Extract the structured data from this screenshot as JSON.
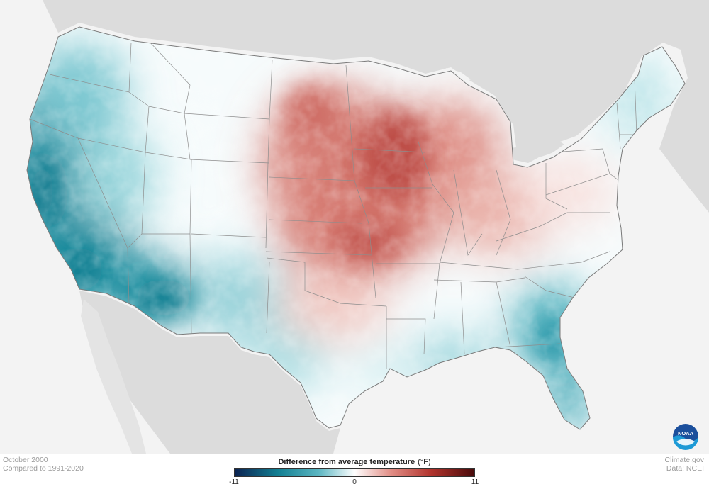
{
  "map": {
    "period": "October 2000",
    "baseline": "Compared to 1991-2020",
    "credit": "Climate.gov",
    "source": "Data: NCEI",
    "logo_text": "NOAA",
    "anomaly_unit": "°F",
    "legend": {
      "title": "Difference from average temperature",
      "unit": "(°F)",
      "min_label": "-11",
      "mid_label": "0",
      "max_label": "11",
      "colors": [
        "#0b2251",
        "#127f92",
        "#5bb6c2",
        "#ffffff",
        "#e28f87",
        "#b1332d",
        "#4a0b0b"
      ]
    },
    "colors": {
      "background": "#f3f3f3",
      "land_outside": "#d9d9d9",
      "ocean": "#f3f3f3",
      "border": "#8d8d8d"
    },
    "anomaly_regions": [
      {
        "region": "Pacific coast / California",
        "anomaly": -6
      },
      {
        "region": "Southern Arizona",
        "anomaly": -6
      },
      {
        "region": "Pacific Northwest",
        "anomaly": -3
      },
      {
        "region": "Great Basin",
        "anomaly": -3
      },
      {
        "region": "New Mexico",
        "anomaly": -2
      },
      {
        "region": "West Texas",
        "anomaly": -2
      },
      {
        "region": "Rocky Mountains",
        "anomaly": 0
      },
      {
        "region": "Central Texas",
        "anomaly": 1
      },
      {
        "region": "Northern Plains",
        "anomaly": 5
      },
      {
        "region": "Minnesota / Wisconsin",
        "anomaly": 6
      },
      {
        "region": "Central Plains",
        "anomaly": 6
      },
      {
        "region": "Ozarks / Missouri",
        "anomaly": 6
      },
      {
        "region": "Michigan",
        "anomaly": 4
      },
      {
        "region": "Ohio Valley",
        "anomaly": 3
      },
      {
        "region": "Mid-Atlantic",
        "anomaly": 1
      },
      {
        "region": "New England",
        "anomaly": -1
      },
      {
        "region": "Gulf coast",
        "anomaly": -2
      },
      {
        "region": "Georgia / Carolinas coast",
        "anomaly": -3
      },
      {
        "region": "Florida",
        "anomaly": -5
      }
    ]
  }
}
